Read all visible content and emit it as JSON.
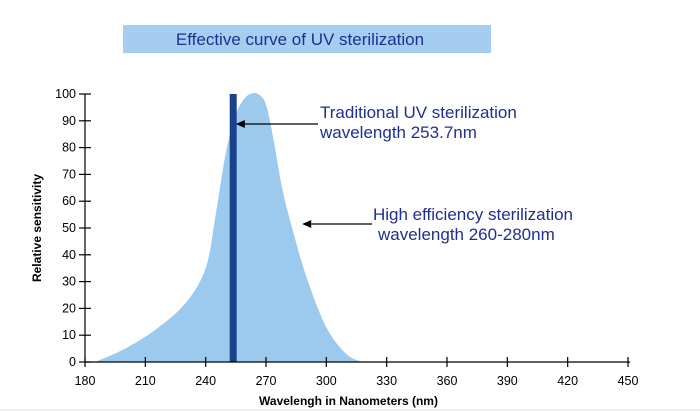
{
  "chart_data": {
    "type": "area",
    "title": "Effective curve of UV sterilization",
    "xlabel": "Wavelengh in Nanometers (nm)",
    "ylabel": "Relative sensitivity",
    "xlim": [
      180,
      450
    ],
    "ylim": [
      0,
      100
    ],
    "x_ticks": [
      180,
      210,
      240,
      270,
      300,
      330,
      360,
      390,
      420,
      450
    ],
    "y_ticks": [
      0,
      10,
      20,
      30,
      40,
      50,
      60,
      70,
      80,
      90,
      100
    ],
    "grid": false,
    "colors": {
      "curve_fill": "#9ccaef",
      "bar": "#1a428a",
      "title_background": "#a4cdf0",
      "text_accent": "#1f2f8f"
    },
    "series": [
      {
        "x": [
          185,
          200,
          215,
          230,
          240,
          245,
          250,
          255,
          258,
          262,
          266,
          270,
          274,
          278,
          283,
          290,
          300,
          310,
          318
        ],
        "y": [
          0,
          5,
          12,
          22,
          35,
          55,
          78,
          92,
          97,
          100,
          100,
          96,
          82,
          65,
          50,
          32,
          13,
          3,
          0
        ]
      }
    ],
    "bar": {
      "x": 253.7,
      "y": 100
    },
    "annotations": [
      {
        "lines": [
          "Traditional UV sterilization",
          "wavelength 253.7nm"
        ],
        "arrow_target": {
          "x": 255,
          "y": 88
        }
      },
      {
        "lines": [
          "High efficiency sterilization",
          "wavelength 260-280nm"
        ],
        "arrow_target": {
          "x": 288,
          "y": 51
        }
      }
    ]
  }
}
